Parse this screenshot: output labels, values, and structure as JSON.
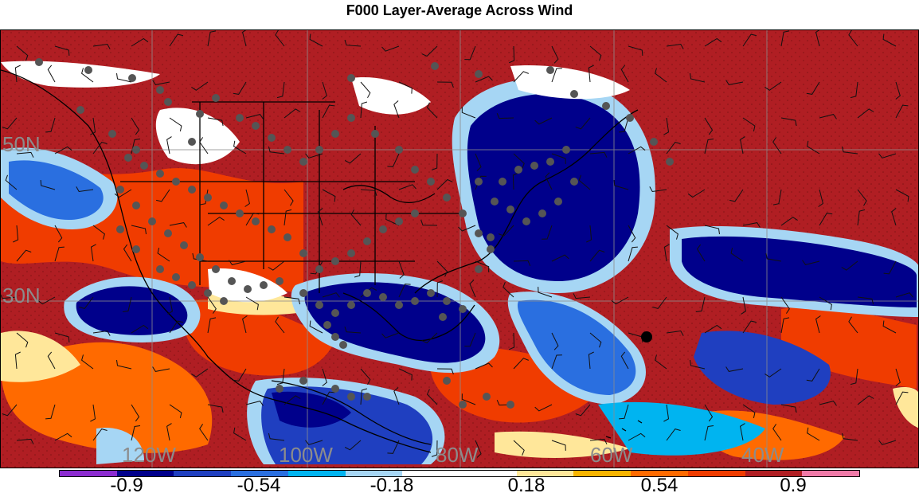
{
  "title": "F000 Layer-Average Across Wind",
  "map": {
    "lon_labels": [
      "120W",
      "100W",
      "80W",
      "60W",
      "40W"
    ],
    "lat_labels": [
      "50N",
      "30N"
    ],
    "gridline_color": "#8c8c8c"
  },
  "colorbar": {
    "colors": [
      "#8b2bd0",
      "#00008b",
      "#1f3fc0",
      "#2a6fe0",
      "#00b4f0",
      "#a6d6f4",
      "#ffffff",
      "#ffffff",
      "#ffe79a",
      "#f8b400",
      "#ff6a00",
      "#f03c00",
      "#b01e23",
      "#f07aa8"
    ],
    "tick_labels": [
      "-0.9",
      "-0.54",
      "-0.18",
      "0.18",
      "0.54",
      "0.9"
    ]
  },
  "marker_color": "#555555",
  "highlight_marker_color": "#000000"
}
